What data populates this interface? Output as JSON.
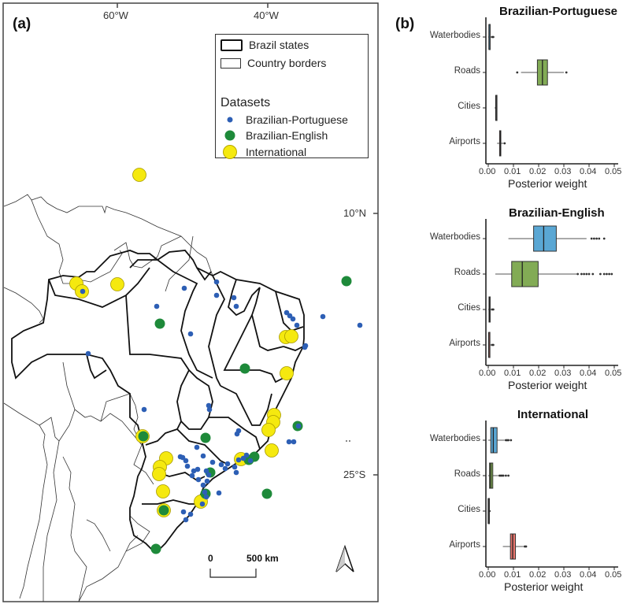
{
  "figure": {
    "panel_a_label": "(a)",
    "panel_b_label": "(b)"
  },
  "map": {
    "longitude_labels": [
      "60°W",
      "40°W"
    ],
    "latitude_labels": [
      "10°N",
      "25°S"
    ],
    "legend": {
      "items": [
        {
          "label": "Brazil states",
          "style": "thick-border-box"
        },
        {
          "label": "Country borders",
          "style": "thin-border-box"
        }
      ],
      "datasets_title": "Datasets",
      "datasets": [
        {
          "label": "Brazilian-Portuguese",
          "color": "#2d5fb5",
          "marker": "small-dot"
        },
        {
          "label": "Brazilian-English",
          "color": "#1e8a3a",
          "marker": "medium-dot"
        },
        {
          "label": "International",
          "color": "#f5e90f",
          "marker": "large-dot"
        }
      ]
    },
    "scale_bar": {
      "start_label": "0",
      "end_label": "500 km"
    },
    "north_arrow": "north-arrow-icon"
  },
  "chart_data": [
    {
      "type": "boxplot",
      "title": "Brazilian-Portuguese",
      "xlabel": "Posterior weight",
      "ylabel": "",
      "xlim": [
        0,
        0.05
      ],
      "xticks": [
        "0.00",
        "0.01",
        "0.02",
        "0.03",
        "0.04",
        "0.05"
      ],
      "categories": [
        "Waterbodies",
        "Roads",
        "Cities",
        "Airports"
      ],
      "boxes": [
        {
          "category": "Waterbodies",
          "color": "#5aa7d4",
          "whisker_low": 0.0,
          "q1": 0.0003,
          "median": 0.0003,
          "q3": 0.0004,
          "whisker_high": 0.001,
          "outliers": [
            0.0015,
            0.002
          ]
        },
        {
          "category": "Roads",
          "color": "#82ab55",
          "whisker_low": 0.013,
          "q1": 0.0195,
          "median": 0.0215,
          "q3": 0.0235,
          "whisker_high": 0.03,
          "outliers": [
            0.0115,
            0.031
          ]
        },
        {
          "category": "Cities",
          "color": "#5a5a5a",
          "whisker_low": 0.0025,
          "q1": 0.003,
          "median": 0.003,
          "q3": 0.0032,
          "whisker_high": 0.0035,
          "outliers": []
        },
        {
          "category": "Airports",
          "color": "#e8756d",
          "whisker_low": 0.0035,
          "q1": 0.0045,
          "median": 0.0048,
          "q3": 0.005,
          "whisker_high": 0.006,
          "outliers": [
            0.0065
          ]
        }
      ]
    },
    {
      "type": "boxplot",
      "title": "Brazilian-English",
      "xlabel": "Posterior weight",
      "ylabel": "",
      "xlim": [
        0,
        0.05
      ],
      "xticks": [
        "0.00",
        "0.01",
        "0.02",
        "0.03",
        "0.04",
        "0.05"
      ],
      "categories": [
        "Waterbodies",
        "Roads",
        "Cities",
        "Airports"
      ],
      "boxes": [
        {
          "category": "Waterbodies",
          "color": "#5aa7d4",
          "whisker_low": 0.008,
          "q1": 0.018,
          "median": 0.022,
          "q3": 0.027,
          "whisker_high": 0.039,
          "outliers": [
            0.041,
            0.042,
            0.043,
            0.044,
            0.046
          ]
        },
        {
          "category": "Roads",
          "color": "#82ab55",
          "whisker_low": 0.0028,
          "q1": 0.0093,
          "median": 0.0135,
          "q3": 0.0198,
          "whisker_high": 0.035,
          "outliers": [
            0.0355,
            0.037,
            0.038,
            0.039,
            0.04,
            0.0415,
            0.0445,
            0.046,
            0.047,
            0.048,
            0.049
          ]
        },
        {
          "category": "Cities",
          "color": "#5a5a5a",
          "whisker_low": 0.0,
          "q1": 0.0003,
          "median": 0.0004,
          "q3": 0.0005,
          "whisker_high": 0.001,
          "outliers": [
            0.0015,
            0.002
          ]
        },
        {
          "category": "Airports",
          "color": "#e8756d",
          "whisker_low": 0.0,
          "q1": 0.0002,
          "median": 0.0002,
          "q3": 0.0003,
          "whisker_high": 0.001,
          "outliers": [
            0.0015,
            0.002
          ]
        }
      ]
    },
    {
      "type": "boxplot",
      "title": "International",
      "xlabel": "Posterior weight",
      "ylabel": "",
      "xlim": [
        0,
        0.05
      ],
      "xticks": [
        "0.00",
        "0.01",
        "0.02",
        "0.03",
        "0.04",
        "0.05"
      ],
      "categories": [
        "Waterbodies",
        "Roads",
        "Cities",
        "Airports"
      ],
      "boxes": [
        {
          "category": "Waterbodies",
          "color": "#5aa7d4",
          "whisker_low": 0.0,
          "q1": 0.001,
          "median": 0.002,
          "q3": 0.0035,
          "whisker_high": 0.0065,
          "outliers": [
            0.007,
            0.0075,
            0.008,
            0.009
          ]
        },
        {
          "category": "Roads",
          "color": "#82ab55",
          "whisker_low": 0.0,
          "q1": 0.0005,
          "median": 0.001,
          "q3": 0.0018,
          "whisker_high": 0.004,
          "outliers": [
            0.0045,
            0.005,
            0.0055,
            0.006,
            0.007,
            0.008
          ]
        },
        {
          "category": "Cities",
          "color": "#5a5a5a",
          "whisker_low": 0.0,
          "q1": 0.0,
          "median": 0.0,
          "q3": 0.0001,
          "whisker_high": 0.0002,
          "outliers": [
            0.0005
          ]
        },
        {
          "category": "Airports",
          "color": "#e8756d",
          "whisker_low": 0.0058,
          "q1": 0.0088,
          "median": 0.0097,
          "q3": 0.0108,
          "whisker_high": 0.014,
          "outliers": [
            0.0145,
            0.015
          ]
        }
      ]
    }
  ]
}
